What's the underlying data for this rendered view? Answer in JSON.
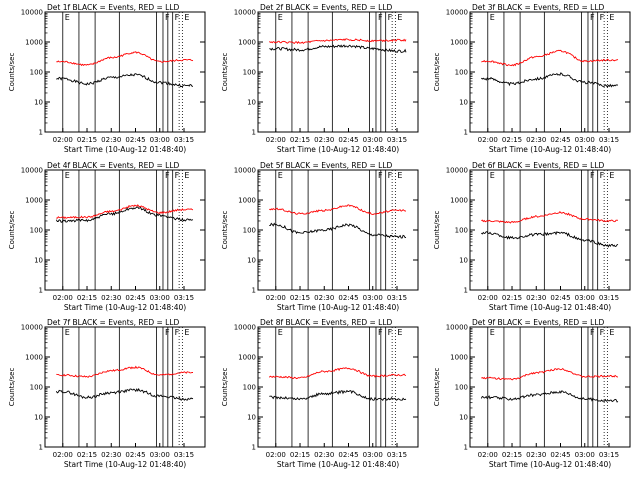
{
  "figure": {
    "y_axis_label": "Counts/sec",
    "x_axis_label": "Start Time (10-Aug-12 01:48:40)",
    "x_ticks": [
      "02:00",
      "02:15",
      "02:30",
      "02:45",
      "03:00",
      "03:15"
    ],
    "y_ticks": [
      "1",
      "10",
      "100",
      "1000",
      "10000"
    ],
    "series_colors": {
      "events": "#000000",
      "lld": "#ff0000"
    }
  },
  "chart_data": [
    {
      "type": "line",
      "title": "Det 1f BLACK = Events, RED = LLD",
      "xlabel": "Start Time (10-Aug-12 01:48:40)",
      "ylabel": "Counts/sec",
      "yscale": "log",
      "ylim": [
        1,
        10000
      ],
      "x": [
        "02:00",
        "02:15",
        "02:30",
        "02:45",
        "03:00",
        "03:15"
      ],
      "series": [
        {
          "values": [
            60,
            40,
            65,
            80,
            45,
            35
          ]
        },
        {
          "values": [
            220,
            170,
            300,
            450,
            220,
            250
          ]
        }
      ],
      "vertical_markers": [
        "02:00",
        "02:10",
        "02:20",
        "02:35",
        "02:58",
        "03:02",
        "03:05",
        "03:08",
        "03:12",
        "03:14"
      ],
      "marker_labels": [
        "E",
        "F",
        "F",
        "E"
      ]
    },
    {
      "type": "line",
      "title": "Det 2f BLACK = Events, RED = LLD",
      "xlabel": "Start Time (10-Aug-12 01:48:40)",
      "ylabel": "Counts/sec",
      "yscale": "log",
      "ylim": [
        1,
        10000
      ],
      "x": [
        "02:00",
        "02:15",
        "02:30",
        "02:45",
        "03:00",
        "03:15"
      ],
      "series": [
        {
          "values": [
            600,
            550,
            700,
            750,
            600,
            500
          ]
        },
        {
          "values": [
            1000,
            950,
            1100,
            1200,
            1100,
            1150
          ]
        }
      ],
      "vertical_markers": [
        "02:00",
        "02:10",
        "02:20",
        "02:35",
        "02:58",
        "03:02",
        "03:05",
        "03:08",
        "03:12",
        "03:14"
      ],
      "marker_labels": [
        "E",
        "F",
        "F",
        "E"
      ]
    },
    {
      "type": "line",
      "title": "Det 3f BLACK = Events, RED = LLD",
      "xlabel": "Start Time (10-Aug-12 01:48:40)",
      "ylabel": "Counts/sec",
      "yscale": "log",
      "ylim": [
        1,
        10000
      ],
      "x": [
        "02:00",
        "02:15",
        "02:30",
        "02:45",
        "03:00",
        "03:15"
      ],
      "series": [
        {
          "values": [
            60,
            40,
            60,
            85,
            45,
            35
          ]
        },
        {
          "values": [
            230,
            170,
            320,
            500,
            230,
            250
          ]
        }
      ],
      "vertical_markers": [
        "02:00",
        "02:10",
        "02:20",
        "02:35",
        "02:58",
        "03:02",
        "03:05",
        "03:08",
        "03:12",
        "03:14"
      ],
      "marker_labels": [
        "E",
        "F",
        "F",
        "E"
      ]
    },
    {
      "type": "line",
      "title": "Det 4f BLACK = Events, RED = LLD",
      "xlabel": "Start Time (10-Aug-12 01:48:40)",
      "ylabel": "Counts/sec",
      "yscale": "log",
      "ylim": [
        1,
        10000
      ],
      "x": [
        "02:00",
        "02:15",
        "02:30",
        "02:45",
        "03:00",
        "03:15"
      ],
      "series": [
        {
          "values": [
            200,
            210,
            350,
            550,
            300,
            220
          ]
        },
        {
          "values": [
            260,
            270,
            420,
            650,
            380,
            480
          ]
        }
      ],
      "vertical_markers": [
        "02:00",
        "02:10",
        "02:20",
        "02:35",
        "02:58",
        "03:02",
        "03:05",
        "03:08",
        "03:12",
        "03:14"
      ],
      "marker_labels": [
        "E",
        "F",
        "F",
        "E"
      ]
    },
    {
      "type": "line",
      "title": "Det 5f BLACK = Events, RED = LLD",
      "xlabel": "Start Time (10-Aug-12 01:48:40)",
      "ylabel": "Counts/sec",
      "yscale": "log",
      "ylim": [
        1,
        10000
      ],
      "x": [
        "02:00",
        "02:15",
        "02:30",
        "02:45",
        "03:00",
        "03:15"
      ],
      "series": [
        {
          "values": [
            150,
            80,
            100,
            150,
            70,
            60
          ]
        },
        {
          "values": [
            500,
            350,
            450,
            650,
            350,
            450
          ]
        }
      ],
      "vertical_markers": [
        "02:00",
        "02:10",
        "02:20",
        "02:35",
        "02:58",
        "03:02",
        "03:05",
        "03:08",
        "03:12",
        "03:14"
      ],
      "marker_labels": [
        "E",
        "F",
        "F",
        "E"
      ]
    },
    {
      "type": "line",
      "title": "Det 6f BLACK = Events, RED = LLD",
      "xlabel": "Start Time (10-Aug-12 01:48:40)",
      "ylabel": "Counts/sec",
      "yscale": "log",
      "ylim": [
        1,
        10000
      ],
      "x": [
        "02:00",
        "02:15",
        "02:30",
        "02:45",
        "03:00",
        "03:15"
      ],
      "series": [
        {
          "values": [
            80,
            55,
            70,
            80,
            45,
            30
          ]
        },
        {
          "values": [
            200,
            180,
            280,
            380,
            230,
            200
          ]
        }
      ],
      "vertical_markers": [
        "02:00",
        "02:10",
        "02:20",
        "02:35",
        "02:58",
        "03:02",
        "03:05",
        "03:08",
        "03:12",
        "03:14"
      ],
      "marker_labels": [
        "E",
        "F",
        "F",
        "E"
      ]
    },
    {
      "type": "line",
      "title": "Det 7f BLACK = Events, RED = LLD",
      "xlabel": "Start Time (10-Aug-12 01:48:40)",
      "ylabel": "Counts/sec",
      "yscale": "log",
      "ylim": [
        1,
        10000
      ],
      "x": [
        "02:00",
        "02:15",
        "02:30",
        "02:45",
        "03:00",
        "03:15"
      ],
      "series": [
        {
          "values": [
            70,
            45,
            65,
            80,
            50,
            40
          ]
        },
        {
          "values": [
            250,
            220,
            350,
            450,
            250,
            300
          ]
        }
      ],
      "vertical_markers": [
        "02:00",
        "02:10",
        "02:20",
        "02:35",
        "02:58",
        "03:02",
        "03:05",
        "03:08",
        "03:12",
        "03:14"
      ],
      "marker_labels": [
        "E",
        "F",
        "F",
        "E"
      ]
    },
    {
      "type": "line",
      "title": "Det 8f BLACK = Events, RED = LLD",
      "xlabel": "Start Time (10-Aug-12 01:48:40)",
      "ylabel": "Counts/sec",
      "yscale": "log",
      "ylim": [
        1,
        10000
      ],
      "x": [
        "02:00",
        "02:15",
        "02:30",
        "02:45",
        "03:00",
        "03:15"
      ],
      "series": [
        {
          "values": [
            45,
            40,
            60,
            70,
            40,
            40
          ]
        },
        {
          "values": [
            220,
            200,
            330,
            420,
            230,
            250
          ]
        }
      ],
      "vertical_markers": [
        "02:00",
        "02:10",
        "02:20",
        "02:35",
        "02:58",
        "03:02",
        "03:05",
        "03:08",
        "03:12",
        "03:14"
      ],
      "marker_labels": [
        "E",
        "F",
        "F",
        "E"
      ]
    },
    {
      "type": "line",
      "title": "Det 9f BLACK = Events, RED = LLD",
      "xlabel": "Start Time (10-Aug-12 01:48:40)",
      "ylabel": "Counts/sec",
      "yscale": "log",
      "ylim": [
        1,
        10000
      ],
      "x": [
        "02:00",
        "02:15",
        "02:30",
        "02:45",
        "03:00",
        "03:15"
      ],
      "series": [
        {
          "values": [
            45,
            40,
            55,
            70,
            40,
            35
          ]
        },
        {
          "values": [
            200,
            180,
            300,
            400,
            220,
            230
          ]
        }
      ],
      "vertical_markers": [
        "02:00",
        "02:10",
        "02:20",
        "02:35",
        "02:58",
        "03:02",
        "03:05",
        "03:08",
        "03:12",
        "03:14"
      ],
      "marker_labels": [
        "E",
        "F",
        "F",
        "E"
      ]
    }
  ]
}
